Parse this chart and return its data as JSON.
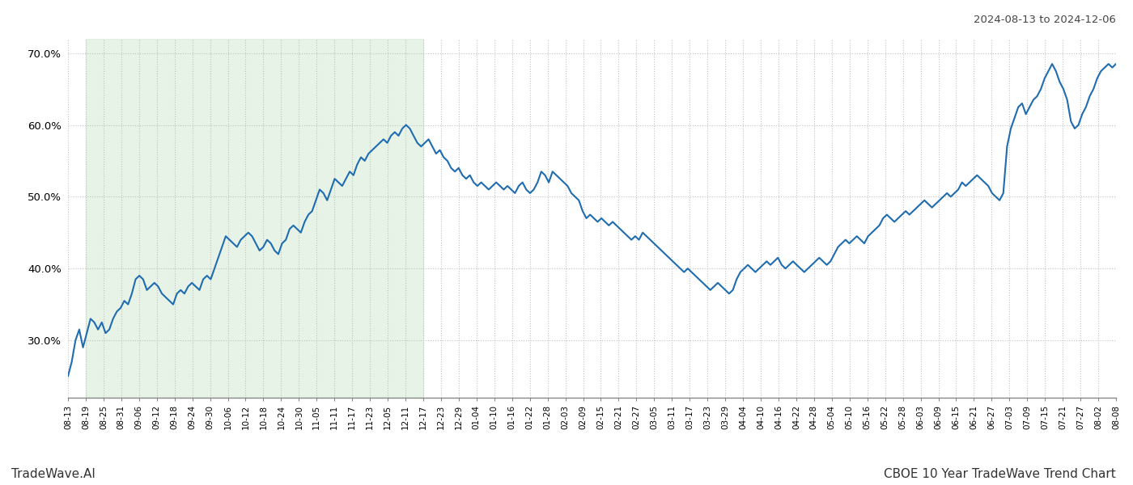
{
  "title_top_right": "2024-08-13 to 2024-12-06",
  "bottom_left": "TradeWave.AI",
  "bottom_right": "CBOE 10 Year TradeWave Trend Chart",
  "line_color": "#1f6cb0",
  "line_width": 1.5,
  "shade_color": "#d4ead4",
  "shade_alpha": 0.55,
  "ylim": [
    22.0,
    72.0
  ],
  "yticks": [
    30.0,
    40.0,
    50.0,
    60.0,
    70.0
  ],
  "background_color": "#ffffff",
  "grid_color": "#bbbbbb",
  "x_labels": [
    "08-13",
    "08-19",
    "08-25",
    "08-31",
    "09-06",
    "09-12",
    "09-18",
    "09-24",
    "09-30",
    "10-06",
    "10-12",
    "10-18",
    "10-24",
    "10-30",
    "11-05",
    "11-11",
    "11-17",
    "11-23",
    "12-05",
    "12-11",
    "12-17",
    "12-23",
    "12-29",
    "01-04",
    "01-10",
    "01-16",
    "01-22",
    "01-28",
    "02-03",
    "02-09",
    "02-15",
    "02-21",
    "02-27",
    "03-05",
    "03-11",
    "03-17",
    "03-23",
    "03-29",
    "04-04",
    "04-10",
    "04-16",
    "04-22",
    "04-28",
    "05-04",
    "05-10",
    "05-16",
    "05-22",
    "05-28",
    "06-03",
    "06-09",
    "06-15",
    "06-21",
    "06-27",
    "07-03",
    "07-09",
    "07-15",
    "07-21",
    "07-27",
    "08-02",
    "08-08"
  ],
  "shade_x_start_label": "08-19",
  "shade_x_end_label": "12-17",
  "y_values": [
    25.0,
    27.0,
    30.0,
    31.5,
    29.0,
    31.0,
    33.0,
    32.5,
    31.5,
    32.5,
    31.0,
    31.5,
    33.0,
    34.0,
    34.5,
    35.5,
    35.0,
    36.5,
    38.5,
    39.0,
    38.5,
    37.0,
    37.5,
    38.0,
    37.5,
    36.5,
    36.0,
    35.5,
    35.0,
    36.5,
    37.0,
    36.5,
    37.5,
    38.0,
    37.5,
    37.0,
    38.5,
    39.0,
    38.5,
    40.0,
    41.5,
    43.0,
    44.5,
    44.0,
    43.5,
    43.0,
    44.0,
    44.5,
    45.0,
    44.5,
    43.5,
    42.5,
    43.0,
    44.0,
    43.5,
    42.5,
    42.0,
    43.5,
    44.0,
    45.5,
    46.0,
    45.5,
    45.0,
    46.5,
    47.5,
    48.0,
    49.5,
    51.0,
    50.5,
    49.5,
    51.0,
    52.5,
    52.0,
    51.5,
    52.5,
    53.5,
    53.0,
    54.5,
    55.5,
    55.0,
    56.0,
    56.5,
    57.0,
    57.5,
    58.0,
    57.5,
    58.5,
    59.0,
    58.5,
    59.5,
    60.0,
    59.5,
    58.5,
    57.5,
    57.0,
    57.5,
    58.0,
    57.0,
    56.0,
    56.5,
    55.5,
    55.0,
    54.0,
    53.5,
    54.0,
    53.0,
    52.5,
    53.0,
    52.0,
    51.5,
    52.0,
    51.5,
    51.0,
    51.5,
    52.0,
    51.5,
    51.0,
    51.5,
    51.0,
    50.5,
    51.5,
    52.0,
    51.0,
    50.5,
    51.0,
    52.0,
    53.5,
    53.0,
    52.0,
    53.5,
    53.0,
    52.5,
    52.0,
    51.5,
    50.5,
    50.0,
    49.5,
    48.0,
    47.0,
    47.5,
    47.0,
    46.5,
    47.0,
    46.5,
    46.0,
    46.5,
    46.0,
    45.5,
    45.0,
    44.5,
    44.0,
    44.5,
    44.0,
    45.0,
    44.5,
    44.0,
    43.5,
    43.0,
    42.5,
    42.0,
    41.5,
    41.0,
    40.5,
    40.0,
    39.5,
    40.0,
    39.5,
    39.0,
    38.5,
    38.0,
    37.5,
    37.0,
    37.5,
    38.0,
    37.5,
    37.0,
    36.5,
    37.0,
    38.5,
    39.5,
    40.0,
    40.5,
    40.0,
    39.5,
    40.0,
    40.5,
    41.0,
    40.5,
    41.0,
    41.5,
    40.5,
    40.0,
    40.5,
    41.0,
    40.5,
    40.0,
    39.5,
    40.0,
    40.5,
    41.0,
    41.5,
    41.0,
    40.5,
    41.0,
    42.0,
    43.0,
    43.5,
    44.0,
    43.5,
    44.0,
    44.5,
    44.0,
    43.5,
    44.5,
    45.0,
    45.5,
    46.0,
    47.0,
    47.5,
    47.0,
    46.5,
    47.0,
    47.5,
    48.0,
    47.5,
    48.0,
    48.5,
    49.0,
    49.5,
    49.0,
    48.5,
    49.0,
    49.5,
    50.0,
    50.5,
    50.0,
    50.5,
    51.0,
    52.0,
    51.5,
    52.0,
    52.5,
    53.0,
    52.5,
    52.0,
    51.5,
    50.5,
    50.0,
    49.5,
    50.5,
    57.0,
    59.5,
    61.0,
    62.5,
    63.0,
    61.5,
    62.5,
    63.5,
    64.0,
    65.0,
    66.5,
    67.5,
    68.5,
    67.5,
    66.0,
    65.0,
    63.5,
    60.5,
    59.5,
    60.0,
    61.5,
    62.5,
    64.0,
    65.0,
    66.5,
    67.5,
    68.0,
    68.5,
    68.0,
    68.5
  ]
}
